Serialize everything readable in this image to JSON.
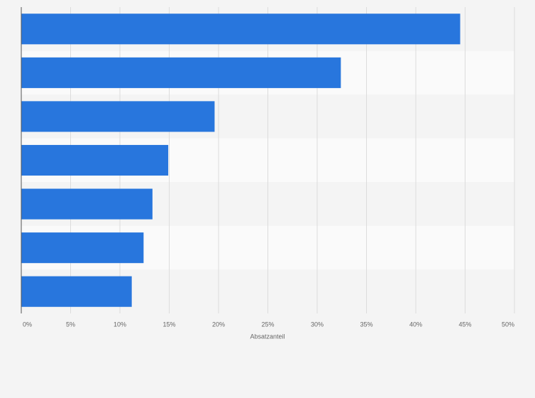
{
  "chart_data": {
    "type": "bar",
    "orientation": "horizontal",
    "categories": [
      null,
      null,
      null,
      null,
      null,
      null,
      null
    ],
    "values": [
      44.5,
      32.4,
      19.6,
      14.9,
      13.3,
      12.4,
      11.2
    ],
    "color": "#2876dd",
    "xlabel": "Absatzanteil",
    "xlim": [
      0,
      50
    ],
    "xticks": [
      {
        "value": 0,
        "label": "0%"
      },
      {
        "value": 5,
        "label": "5%"
      },
      {
        "value": 10,
        "label": "10%"
      },
      {
        "value": 15,
        "label": "15%"
      },
      {
        "value": 20,
        "label": "20%"
      },
      {
        "value": 25,
        "label": "25%"
      },
      {
        "value": 30,
        "label": "30%"
      },
      {
        "value": 35,
        "label": "35%"
      },
      {
        "value": 40,
        "label": "40%"
      },
      {
        "value": 45,
        "label": "45%"
      },
      {
        "value": 50,
        "label": "50%"
      }
    ],
    "grid": true
  }
}
